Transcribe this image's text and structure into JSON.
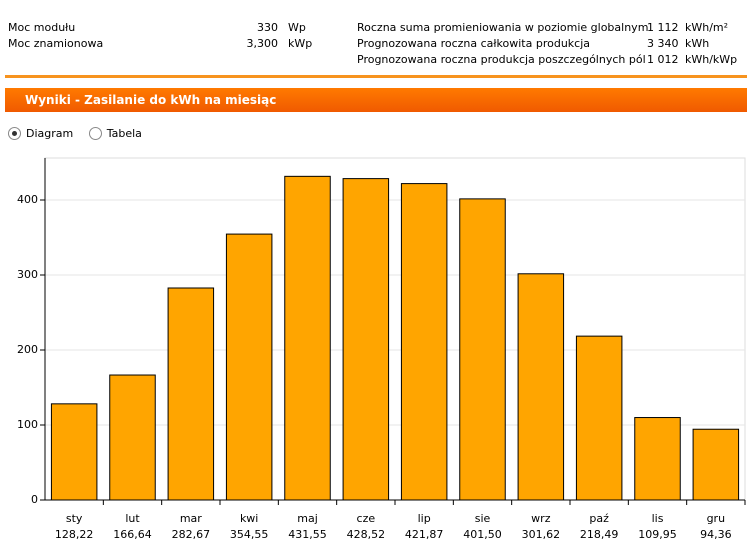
{
  "info": {
    "left": [
      [
        "Moc modułu",
        "330",
        "Wp"
      ],
      [
        "Moc znamionowa",
        "3,300",
        "kWp"
      ]
    ],
    "right": [
      [
        "Roczna suma promieniowania w poziomie globalnym",
        "1 112",
        "kWh/m²"
      ],
      [
        "Prognozowana roczna całkowita produkcja",
        "3 340",
        "kWh"
      ],
      [
        "Prognozowana roczna produkcja poszczególnych pól",
        "1 012",
        "kWh/kWp"
      ]
    ]
  },
  "section_title": "Wyniki - Zasilanie do kWh na miesiąc",
  "view_options": [
    "Diagram",
    "Tabela"
  ],
  "chart_data": {
    "type": "bar",
    "categories": [
      "sty",
      "lut",
      "mar",
      "kwi",
      "maj",
      "cze",
      "lip",
      "sie",
      "wrz",
      "paź",
      "lis",
      "gru"
    ],
    "values": [
      128.22,
      166.64,
      282.67,
      354.55,
      431.55,
      428.52,
      421.87,
      401.5,
      301.62,
      218.49,
      109.95,
      94.36
    ],
    "value_labels": [
      "128,22",
      "166,64",
      "282,67",
      "354,55",
      "431,55",
      "428,52",
      "421,87",
      "401,50",
      "301,62",
      "218,49",
      "109,95",
      "94,36"
    ],
    "color": "#ffa500",
    "ylim": [
      0,
      456
    ],
    "yticks": [
      0,
      100,
      200,
      300,
      400
    ],
    "grid": true
  }
}
